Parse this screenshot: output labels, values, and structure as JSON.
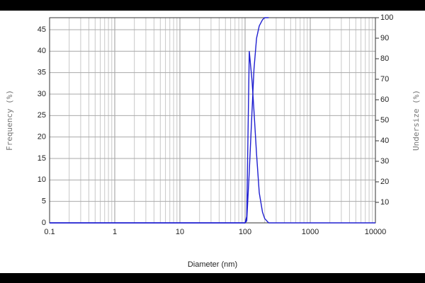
{
  "chart_data": {
    "type": "line",
    "xlabel": "Diameter (nm)",
    "ylabel": "Frequency (%)",
    "y2label": "Undersize (%)",
    "log_x": true,
    "grid": true,
    "x": [
      0.1,
      100,
      106,
      116,
      128,
      137,
      150,
      165,
      185,
      200,
      230,
      10000
    ],
    "series": [
      {
        "name": "Frequency",
        "color": "#1f1fd0",
        "values": [
          0,
          0,
          1.5,
          40,
          33,
          26,
          16,
          7,
          2.5,
          1,
          0,
          0
        ]
      },
      {
        "name": "Undersize",
        "color": "#1f1fd0",
        "axis": "y2",
        "values": [
          0,
          0,
          1,
          25,
          55,
          75,
          90,
          96,
          99,
          100,
          100,
          null
        ]
      }
    ],
    "xlim": [
      0.1,
      10000
    ],
    "xticks": [
      0.1,
      1,
      10,
      100,
      1000,
      10000
    ],
    "ylim": [
      0,
      47.8
    ],
    "yticks": [
      0,
      5,
      10,
      15,
      20,
      25,
      30,
      35,
      40,
      45
    ],
    "y2lim": [
      0,
      100
    ],
    "y2ticks": [
      10,
      20,
      30,
      40,
      50,
      60,
      70,
      80,
      90,
      100
    ]
  }
}
